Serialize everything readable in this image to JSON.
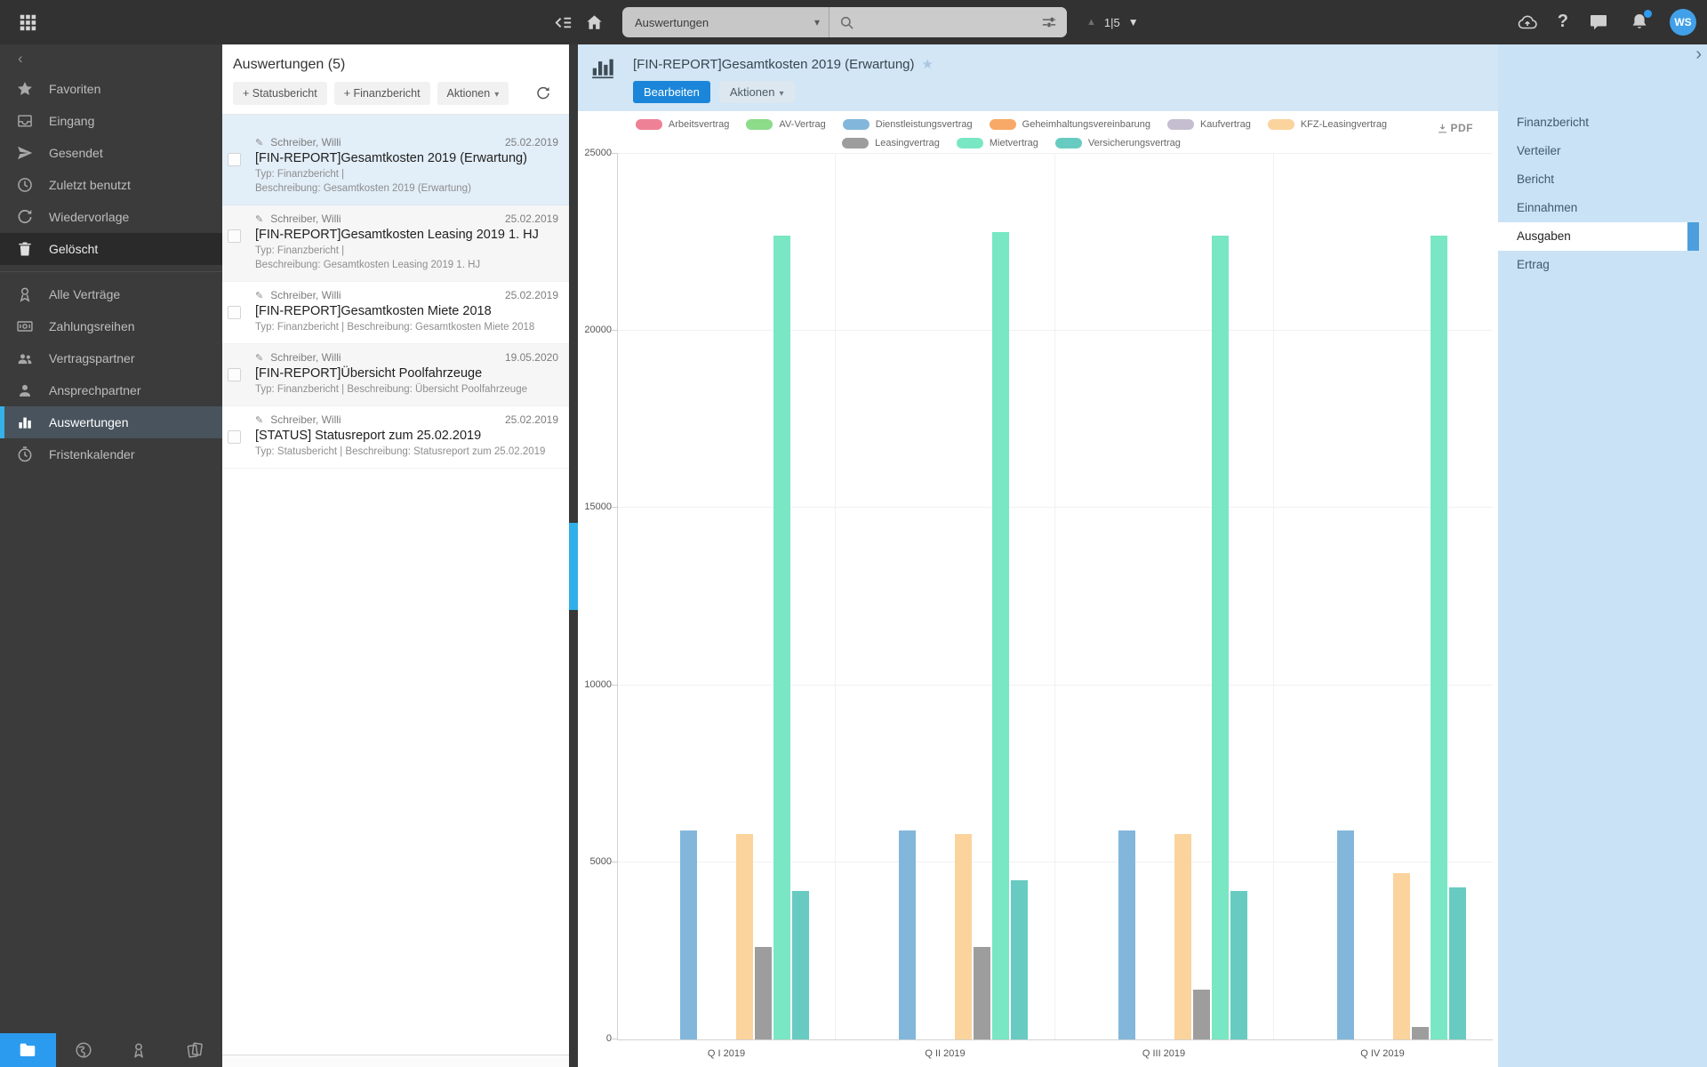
{
  "glyphs": {
    "caret_down": "▾",
    "triangle_up": "▲",
    "triangle_down": "▼",
    "chevron_left": "‹",
    "chevron_right": "›",
    "star": "★",
    "pencil": "✎"
  },
  "colors": {
    "accent_blue": "#2196f3",
    "edit_button_blue": "#1b86d9",
    "scrollbar_thumb_blue": "#2fb0ea",
    "selected_item_blue": "#e2eef8",
    "topbar_bg": "#323232",
    "sidebar_bg": "#3b3b3b",
    "rightbar_bg": "#c9e2f5"
  },
  "topbar": {
    "scope_label": "Auswertungen",
    "search": {
      "value": "",
      "placeholder": ""
    },
    "pagination": "1|5",
    "help_label": "?",
    "avatar_initials": "WS"
  },
  "sidebar": {
    "groups": [
      {
        "items": [
          {
            "label": "Favoriten",
            "icon": "star"
          },
          {
            "label": "Eingang",
            "icon": "inbox"
          },
          {
            "label": "Gesendet",
            "icon": "send"
          },
          {
            "label": "Zuletzt benutzt",
            "icon": "clock"
          },
          {
            "label": "Wiedervorlage",
            "icon": "refresh"
          },
          {
            "label": "Gelöscht",
            "icon": "trash",
            "highlight": "dark"
          }
        ]
      },
      {
        "items": [
          {
            "label": "Alle Verträge",
            "icon": "contract"
          },
          {
            "label": "Zahlungsreihen",
            "icon": "banknote"
          },
          {
            "label": "Vertragspartner",
            "icon": "people"
          },
          {
            "label": "Ansprechpartner",
            "icon": "person"
          },
          {
            "label": "Auswertungen",
            "icon": "bar-chart",
            "highlight": "selected"
          },
          {
            "label": "Fristenkalender",
            "icon": "timer"
          }
        ]
      }
    ],
    "bottom_tabs": [
      {
        "icon": "folder",
        "active": true
      },
      {
        "icon": "globe"
      },
      {
        "icon": "certificate"
      },
      {
        "icon": "documents"
      }
    ]
  },
  "list_panel": {
    "title": "Auswertungen (5)",
    "add_status_label": "+ Statusbericht",
    "add_finance_label": "+ Finanzbericht",
    "actions_label": "Aktionen",
    "items": [
      {
        "author": "Schreiber, Willi",
        "date": "25.02.2019",
        "title": "[FIN-REPORT]Gesamtkosten 2019 (Erwartung)",
        "meta_lines": [
          "Typ: Finanzbericht  |",
          "Beschreibung: Gesamtkosten 2019 (Erwartung)"
        ],
        "selected": true
      },
      {
        "author": "Schreiber, Willi",
        "date": "25.02.2019",
        "title": "[FIN-REPORT]Gesamtkosten Leasing 2019 1. HJ",
        "meta_lines": [
          "Typ: Finanzbericht  |",
          "Beschreibung: Gesamtkosten Leasing 2019 1. HJ"
        ],
        "shaded": true
      },
      {
        "author": "Schreiber, Willi",
        "date": "25.02.2019",
        "title": "[FIN-REPORT]Gesamtkosten Miete 2018",
        "meta_lines": [
          "Typ: Finanzbericht  |  Beschreibung: Gesamtkosten Miete 2018"
        ]
      },
      {
        "author": "Schreiber, Willi",
        "date": "19.05.2020",
        "title": "[FIN-REPORT]Übersicht Poolfahrzeuge",
        "meta_lines": [
          "Typ: Finanzbericht  |  Beschreibung: Übersicht Poolfahrzeuge"
        ],
        "shaded": true
      },
      {
        "author": "Schreiber, Willi",
        "date": "25.02.2019",
        "title": "[STATUS] Statusreport zum 25.02.2019",
        "meta_lines": [
          "Typ: Statusbericht  |  Beschreibung: Statusreport zum 25.02.2019"
        ]
      }
    ]
  },
  "main": {
    "title": "[FIN-REPORT]Gesamtkosten 2019 (Erwartung)",
    "edit_label": "Bearbeiten",
    "actions_label": "Aktionen",
    "pdf_label": "PDF"
  },
  "right_sidebar": {
    "items": [
      "Finanzbericht",
      "Verteiler",
      "Bericht",
      "Einnahmen",
      "Ausgaben",
      "Ertrag"
    ],
    "selected": "Ausgaben"
  },
  "chart_data": {
    "type": "bar",
    "title": "[FIN-REPORT]Gesamtkosten 2019 (Erwartung)",
    "categories": [
      "Q I 2019",
      "Q II 2019",
      "Q III 2019",
      "Q IV 2019"
    ],
    "series": [
      {
        "name": "Arbeitsvertrag",
        "color": "#ef8196",
        "values": [
          0,
          0,
          0,
          0
        ]
      },
      {
        "name": "AV-Vertrag",
        "color": "#8cdc8a",
        "values": [
          0,
          0,
          0,
          0
        ]
      },
      {
        "name": "Dienstleistungsvertrag",
        "color": "#82b7db",
        "values": [
          5900,
          5900,
          5900,
          5900
        ]
      },
      {
        "name": "Geheimhaltungsvereinbarung",
        "color": "#f8a967",
        "values": [
          0,
          0,
          0,
          0
        ]
      },
      {
        "name": "Kaufvertrag",
        "color": "#c5bed1",
        "values": [
          0,
          0,
          0,
          0
        ]
      },
      {
        "name": "KFZ-Leasingvertrag",
        "color": "#fbd39c",
        "values": [
          5800,
          5800,
          5800,
          4700
        ]
      },
      {
        "name": "Leasingvertrag",
        "color": "#9d9d9d",
        "values": [
          2600,
          2600,
          1400,
          350
        ]
      },
      {
        "name": "Mietvertrag",
        "color": "#79e7c3",
        "values": [
          22700,
          22800,
          22700,
          22700
        ]
      },
      {
        "name": "Versicherungsvertrag",
        "color": "#68cbc1",
        "values": [
          4200,
          4500,
          4200,
          4300
        ]
      }
    ],
    "xlabel": "",
    "ylabel": "",
    "ylim": [
      0,
      25000
    ],
    "yticks": [
      0,
      5000,
      10000,
      15000,
      20000,
      25000
    ],
    "grid": true,
    "legend_position": "top"
  }
}
